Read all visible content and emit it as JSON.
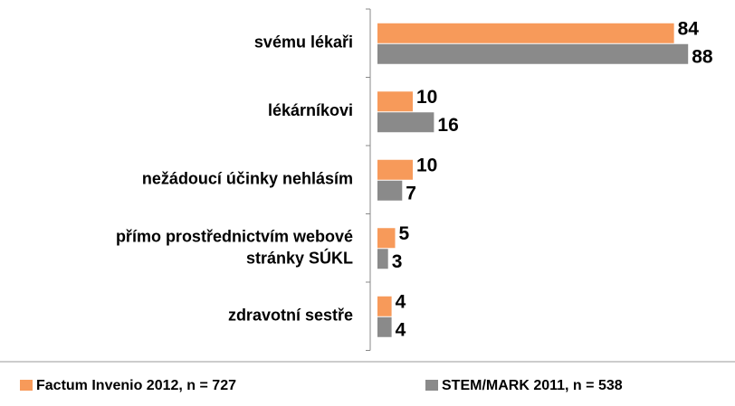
{
  "chart_data": {
    "type": "hbar",
    "categories": [
      "svému lékaři",
      "lékárníkovi",
      "nežádoucí účinky nehlásím",
      "přímo prostřednictvím webové\nstránky SÚKL",
      "zdravotní sestře"
    ],
    "series": [
      {
        "name": "Factum Invenio 2012, n = 727",
        "color": "#f79a5a",
        "values": [
          84,
          10,
          10,
          5,
          4
        ]
      },
      {
        "name": "STEM/MARK 2011, n = 538",
        "color": "#8a8a8a",
        "values": [
          88,
          16,
          7,
          3,
          4
        ]
      }
    ],
    "legend": "bottom"
  }
}
